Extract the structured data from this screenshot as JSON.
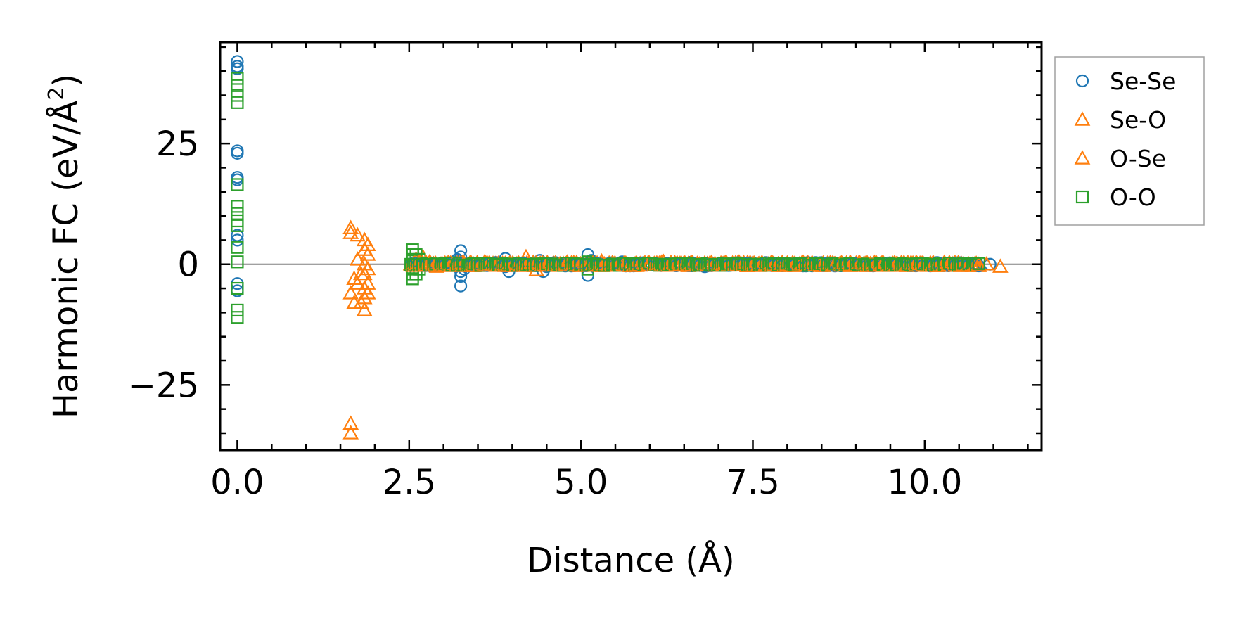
{
  "chart_data": {
    "type": "scatter",
    "xlabel": "Distance (Å)",
    "ylabel_main": "Harmonic FC (eV/Å",
    "ylabel_sup": "2",
    "ylabel_close": ")",
    "xlim": [
      -0.25,
      11.7
    ],
    "ylim": [
      -38.5,
      46
    ],
    "xticks": [
      0,
      2.5,
      5,
      7.5,
      10
    ],
    "xtick_labels": [
      "0.0",
      "2.5",
      "5.0",
      "7.5",
      "10.0"
    ],
    "yticks": [
      -25,
      0,
      25
    ],
    "ytick_labels": [
      "−25",
      "0",
      "25"
    ],
    "x_minor_step": 0.5,
    "y_minor_step": 5,
    "reference_line_y": 0,
    "legend_position": "outside-right-top",
    "series": [
      {
        "name": "Se-Se",
        "marker": "circle",
        "color": "#1f77b4",
        "points": [
          [
            0,
            42
          ],
          [
            0,
            41
          ],
          [
            0,
            40.5
          ],
          [
            0,
            23.5
          ],
          [
            0,
            23
          ],
          [
            0,
            18
          ],
          [
            0,
            17.5
          ],
          [
            0,
            6
          ],
          [
            0,
            5
          ],
          [
            0,
            -4
          ],
          [
            0,
            -5.5
          ],
          [
            3.25,
            2.8
          ],
          [
            3.25,
            1.5
          ],
          [
            3.25,
            0
          ],
          [
            3.25,
            -1.5
          ],
          [
            3.25,
            -2.5
          ],
          [
            3.25,
            -4.5
          ],
          [
            3.2,
            1
          ],
          [
            3.3,
            -1
          ],
          [
            3.9,
            1.2
          ],
          [
            3.9,
            -0.5
          ],
          [
            3.95,
            -1.5
          ],
          [
            4.4,
            0.8
          ],
          [
            4.45,
            -1.5
          ],
          [
            4.5,
            -0.5
          ],
          [
            5.1,
            2
          ],
          [
            5.1,
            -2.3
          ],
          [
            5.15,
            0.8
          ],
          [
            5.6,
            0.5
          ],
          [
            6.0,
            0
          ],
          [
            6.6,
            0.4
          ],
          [
            6.8,
            -0.5
          ],
          [
            7.5,
            0.3
          ],
          [
            8.2,
            0.2
          ],
          [
            9.0,
            0.1
          ],
          [
            10.2,
            0.1
          ],
          [
            10.6,
            0
          ],
          [
            10.75,
            0
          ],
          [
            10.95,
            0
          ]
        ]
      },
      {
        "name": "Se-O",
        "marker": "triangle",
        "color": "#ff7f0e",
        "points": [
          [
            1.65,
            7.5
          ],
          [
            1.65,
            6.5
          ],
          [
            1.7,
            -3
          ],
          [
            1.65,
            -6
          ],
          [
            1.7,
            -8
          ],
          [
            1.65,
            -33
          ],
          [
            1.65,
            -35
          ],
          [
            1.85,
            5
          ],
          [
            1.85,
            3
          ],
          [
            1.85,
            0
          ],
          [
            1.85,
            -2
          ],
          [
            1.85,
            -5
          ],
          [
            1.85,
            -7
          ],
          [
            1.85,
            -9.5
          ],
          [
            1.9,
            4
          ],
          [
            1.9,
            2
          ],
          [
            1.9,
            -1
          ],
          [
            1.9,
            -4
          ],
          [
            1.9,
            -6
          ],
          [
            2.7,
            1.5
          ],
          [
            2.8,
            0.5
          ],
          [
            2.9,
            -0.5
          ],
          [
            3.4,
            0.3
          ],
          [
            3.6,
            0.5
          ],
          [
            4.2,
            1.5
          ],
          [
            4.35,
            -1.2
          ],
          [
            4.8,
            0.4
          ],
          [
            5.3,
            0.6
          ],
          [
            5.8,
            0.2
          ],
          [
            6.2,
            0.5
          ],
          [
            6.5,
            0.3
          ],
          [
            6.9,
            0.2
          ],
          [
            7.3,
            0.4
          ],
          [
            7.8,
            0.1
          ],
          [
            8.3,
            0.3
          ],
          [
            8.8,
            0.1
          ],
          [
            9.3,
            0.2
          ],
          [
            9.9,
            0.1
          ],
          [
            10.4,
            0.1
          ],
          [
            10.9,
            0
          ],
          [
            11.1,
            -0.5
          ]
        ]
      },
      {
        "name": "O-Se",
        "marker": "triangle",
        "color": "#ff7f0e",
        "points": [
          [
            1.75,
            6
          ],
          [
            1.75,
            1
          ],
          [
            1.75,
            -4
          ],
          [
            1.8,
            -2
          ],
          [
            1.8,
            -8
          ],
          [
            2.6,
            1
          ],
          [
            3.1,
            0.2
          ],
          [
            3.7,
            -0.3
          ],
          [
            4.6,
            0.2
          ],
          [
            5.5,
            -0.2
          ],
          [
            6.4,
            0.2
          ],
          [
            7.1,
            0.1
          ],
          [
            8.0,
            0.2
          ],
          [
            8.6,
            0
          ],
          [
            9.6,
            0.1
          ],
          [
            10.5,
            0
          ]
        ]
      },
      {
        "name": "O-O",
        "marker": "square",
        "color": "#2ca02c",
        "points": [
          [
            0,
            38.5
          ],
          [
            0,
            37
          ],
          [
            0,
            35
          ],
          [
            0,
            33.5
          ],
          [
            0,
            16.5
          ],
          [
            0,
            12
          ],
          [
            0,
            10.5
          ],
          [
            0,
            9
          ],
          [
            0,
            8
          ],
          [
            0,
            3.5
          ],
          [
            0,
            0.5
          ],
          [
            0,
            -5
          ],
          [
            0,
            -9.5
          ],
          [
            0,
            -11
          ],
          [
            2.55,
            3
          ],
          [
            2.55,
            2
          ],
          [
            2.55,
            1
          ],
          [
            2.55,
            0
          ],
          [
            2.55,
            -1
          ],
          [
            2.55,
            -2
          ],
          [
            2.55,
            -3
          ],
          [
            2.6,
            2
          ],
          [
            2.6,
            -2
          ],
          [
            2.65,
            1
          ],
          [
            2.65,
            -1
          ],
          [
            2.9,
            0
          ],
          [
            3.1,
            0.3
          ],
          [
            3.45,
            0
          ],
          [
            3.7,
            0
          ],
          [
            4.0,
            0
          ],
          [
            4.3,
            -0.3
          ],
          [
            4.55,
            0
          ],
          [
            5.1,
            -1
          ],
          [
            5.1,
            0.5
          ],
          [
            5.4,
            0
          ],
          [
            5.85,
            0.2
          ],
          [
            6.3,
            0
          ],
          [
            6.7,
            0
          ],
          [
            7.2,
            0
          ],
          [
            7.7,
            0
          ],
          [
            8.2,
            0
          ],
          [
            8.7,
            0
          ],
          [
            9.2,
            0
          ],
          [
            9.7,
            0
          ],
          [
            10.1,
            0
          ],
          [
            10.3,
            0
          ]
        ]
      }
    ],
    "dense_band": {
      "x_start": 2.5,
      "x_end": 10.8,
      "count": 240,
      "amplitude": 0.6
    }
  }
}
